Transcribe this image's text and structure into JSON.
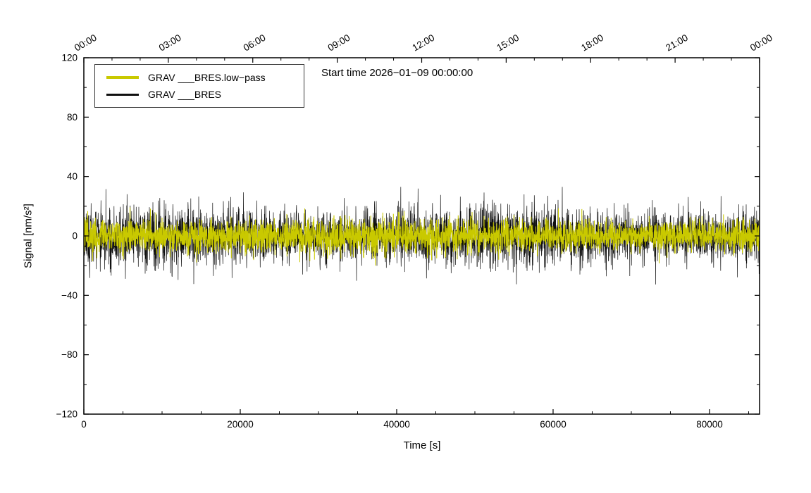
{
  "chart_data": {
    "type": "line",
    "title": "Start time 2026−01−09 00:00:00",
    "xlabel": "Time [s]",
    "ylabel": "Signal [nm/s²]",
    "xlim": [
      0,
      86400
    ],
    "ylim": [
      -120,
      120
    ],
    "y_ticks": [
      -120,
      -80,
      -40,
      0,
      40,
      80,
      120
    ],
    "y_minor_step": 20,
    "x_ticks_bottom": [
      0,
      20000,
      40000,
      60000,
      80000
    ],
    "x_minor_step_bottom": 5000,
    "x_ticks_top": [
      {
        "seconds": 0,
        "label": "00:00"
      },
      {
        "seconds": 10800,
        "label": "03:00"
      },
      {
        "seconds": 21600,
        "label": "06:00"
      },
      {
        "seconds": 32400,
        "label": "09:00"
      },
      {
        "seconds": 43200,
        "label": "12:00"
      },
      {
        "seconds": 54000,
        "label": "15:00"
      },
      {
        "seconds": 64800,
        "label": "18:00"
      },
      {
        "seconds": 75600,
        "label": "21:00"
      },
      {
        "seconds": 86400,
        "label": "00:00"
      }
    ],
    "x_minor_step_top": 3600,
    "grid": false,
    "legend_position": "top-left",
    "series": [
      {
        "name": "GRAV ___BRES.low−pass",
        "color": "#c9c900",
        "style": "noise-band",
        "mean": 0,
        "noise_sigma": 5.5,
        "typical_extent": 9,
        "amplitude_peak": 24
      },
      {
        "name": "GRAV ___BRES",
        "color": "#101010",
        "style": "noise-band",
        "mean": 0,
        "noise_sigma": 10,
        "typical_extent": 18,
        "amplitude_peak": 33
      }
    ]
  },
  "frame": {
    "color": "#000000",
    "background": "#ffffff"
  }
}
